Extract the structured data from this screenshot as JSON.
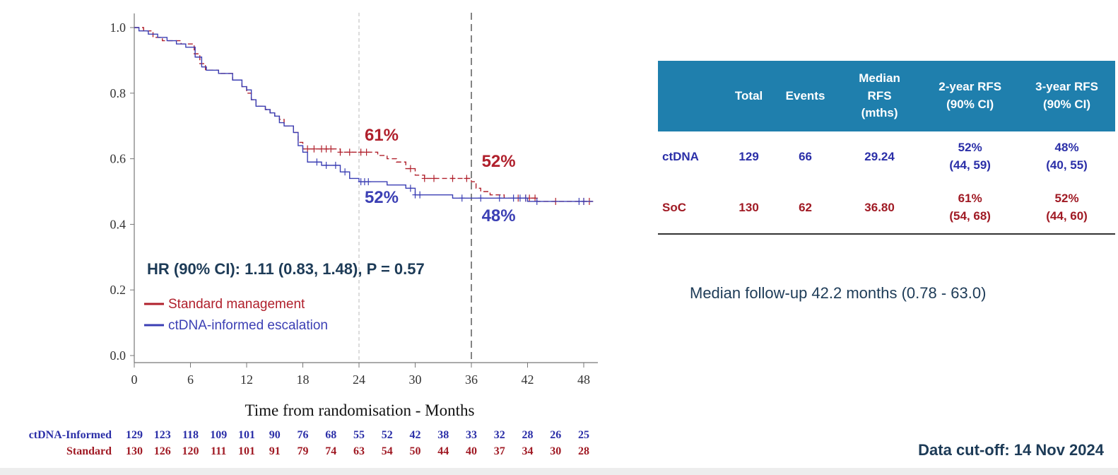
{
  "chart_data": {
    "type": "line",
    "title": "",
    "xlabel": "Time from randomisation - Months",
    "ylabel": "",
    "xlim": [
      0,
      49
    ],
    "ylim": [
      0,
      1
    ],
    "x_ticks": [
      "0",
      "6",
      "12",
      "18",
      "24",
      "30",
      "36",
      "42",
      "48"
    ],
    "y_ticks": [
      "0.0",
      "0.2",
      "0.4",
      "0.6",
      "0.8",
      "1.0"
    ],
    "grid": false,
    "reference_lines_x": [
      24,
      36
    ],
    "series": [
      {
        "name": "Standard management",
        "color": "#b0202c",
        "dash": true,
        "points": [
          [
            0,
            1.0
          ],
          [
            1,
            0.99
          ],
          [
            2,
            0.97
          ],
          [
            3,
            0.96
          ],
          [
            4,
            0.96
          ],
          [
            5,
            0.95
          ],
          [
            5.8,
            0.95
          ],
          [
            6.4,
            0.92
          ],
          [
            7,
            0.89
          ],
          [
            7.6,
            0.87
          ],
          [
            9,
            0.86
          ],
          [
            10.5,
            0.84
          ],
          [
            11.5,
            0.82
          ],
          [
            12,
            0.8
          ],
          [
            12.5,
            0.78
          ],
          [
            13,
            0.76
          ],
          [
            14,
            0.75
          ],
          [
            14.5,
            0.74
          ],
          [
            15,
            0.73
          ],
          [
            15.5,
            0.72
          ],
          [
            16,
            0.7
          ],
          [
            17,
            0.68
          ],
          [
            17.5,
            0.65
          ],
          [
            18,
            0.63
          ],
          [
            19,
            0.63
          ],
          [
            20,
            0.63
          ],
          [
            22,
            0.62
          ],
          [
            24,
            0.62
          ],
          [
            25,
            0.62
          ],
          [
            26,
            0.61
          ],
          [
            27,
            0.6
          ],
          [
            28,
            0.59
          ],
          [
            29,
            0.57
          ],
          [
            30,
            0.55
          ],
          [
            31,
            0.54
          ],
          [
            33,
            0.54
          ],
          [
            35,
            0.54
          ],
          [
            36,
            0.53
          ],
          [
            36.5,
            0.51
          ],
          [
            37,
            0.5
          ],
          [
            38,
            0.49
          ],
          [
            39.5,
            0.48
          ],
          [
            41,
            0.48
          ],
          [
            42,
            0.48
          ],
          [
            43,
            0.47
          ],
          [
            45,
            0.47
          ],
          [
            47,
            0.47
          ],
          [
            49,
            0.47
          ]
        ],
        "censor": [
          18.5,
          19.2,
          20,
          20.5,
          21,
          22,
          23,
          24.2,
          24.8,
          29.5,
          31,
          32,
          34,
          35.5,
          41,
          41.8,
          42.2,
          42.8,
          45,
          48,
          48.6
        ]
      },
      {
        "name": "ctDNA-informed escalation",
        "color": "#3b3fb4",
        "dash": false,
        "points": [
          [
            0,
            1.0
          ],
          [
            0.5,
            0.99
          ],
          [
            1.5,
            0.98
          ],
          [
            2.5,
            0.97
          ],
          [
            3.5,
            0.96
          ],
          [
            4.5,
            0.95
          ],
          [
            5.5,
            0.94
          ],
          [
            6.5,
            0.91
          ],
          [
            7.2,
            0.88
          ],
          [
            7.7,
            0.87
          ],
          [
            9,
            0.86
          ],
          [
            10.5,
            0.84
          ],
          [
            11.5,
            0.82
          ],
          [
            12,
            0.81
          ],
          [
            12.5,
            0.78
          ],
          [
            13,
            0.76
          ],
          [
            14,
            0.75
          ],
          [
            14.5,
            0.74
          ],
          [
            15,
            0.73
          ],
          [
            15.5,
            0.71
          ],
          [
            16,
            0.7
          ],
          [
            17,
            0.68
          ],
          [
            17.5,
            0.64
          ],
          [
            18,
            0.62
          ],
          [
            18.5,
            0.59
          ],
          [
            19,
            0.59
          ],
          [
            20,
            0.58
          ],
          [
            20.5,
            0.58
          ],
          [
            22,
            0.56
          ],
          [
            23,
            0.54
          ],
          [
            24,
            0.53
          ],
          [
            25,
            0.53
          ],
          [
            27,
            0.52
          ],
          [
            29,
            0.51
          ],
          [
            30,
            0.49
          ],
          [
            31,
            0.49
          ],
          [
            33,
            0.49
          ],
          [
            34,
            0.48
          ],
          [
            36,
            0.48
          ],
          [
            37,
            0.48
          ],
          [
            39,
            0.48
          ],
          [
            41,
            0.48
          ],
          [
            42,
            0.47
          ],
          [
            43,
            0.47
          ],
          [
            44,
            0.47
          ],
          [
            48,
            0.47
          ],
          [
            49,
            0.47
          ]
        ],
        "censor": [
          19.5,
          20.5,
          21.5,
          22.5,
          24.2,
          24.6,
          25,
          29.5,
          30,
          30.5,
          35,
          37,
          39,
          40.5,
          41.2,
          41.8,
          43,
          47.5,
          48
        ]
      }
    ],
    "annotations": [
      {
        "text": "61%",
        "x": 24.6,
        "y": 0.655,
        "color": "#b0202c"
      },
      {
        "text": "52%",
        "x": 37.1,
        "y": 0.575,
        "color": "#b0202c"
      },
      {
        "text": "52%",
        "x": 24.6,
        "y": 0.465,
        "color": "#3b3fb4"
      },
      {
        "text": "48%",
        "x": 37.1,
        "y": 0.41,
        "color": "#3b3fb4"
      }
    ],
    "hr_text": "HR (90% CI): 1.11 (0.83, 1.48), P = 0.57",
    "legend": [
      {
        "label": "Standard management",
        "color": "#b0202c"
      },
      {
        "label": "ctDNA-informed escalation",
        "color": "#3b3fb4"
      }
    ],
    "legend_placement": "lower-left",
    "risk_table": {
      "rows": [
        {
          "label": "ctDNA-Informed",
          "color": "#2b2fa8",
          "values": [
            "129",
            "123",
            "118",
            "109",
            "101",
            "90",
            "76",
            "68",
            "55",
            "52",
            "42",
            "38",
            "33",
            "32",
            "28",
            "26",
            "25"
          ]
        },
        {
          "label": "Standard",
          "color": "#a01a24",
          "values": [
            "130",
            "126",
            "120",
            "111",
            "101",
            "91",
            "79",
            "74",
            "63",
            "54",
            "50",
            "44",
            "40",
            "37",
            "34",
            "30",
            "28"
          ]
        }
      ]
    }
  },
  "table": {
    "headers": [
      "",
      "Total",
      "Events",
      "Median\nRFS\n(mths)",
      "2-year RFS\n(90% CI)",
      "3-year RFS\n(90% CI)"
    ],
    "rows": [
      {
        "name": "ctDNA",
        "color": "#2b2fa8",
        "cells": [
          "129",
          "66",
          "29.24",
          "52%\n(44, 59)",
          "48%\n(40, 55)"
        ]
      },
      {
        "name": "SoC",
        "color": "#a01a24",
        "cells": [
          "130",
          "62",
          "36.80",
          "61%\n(54, 68)",
          "52%\n(44, 60)"
        ]
      }
    ]
  },
  "follow_up": "Median follow-up 42.2 months (0.78 - 63.0)",
  "data_cutoff": "Data cut-off: 14 Nov 2024"
}
